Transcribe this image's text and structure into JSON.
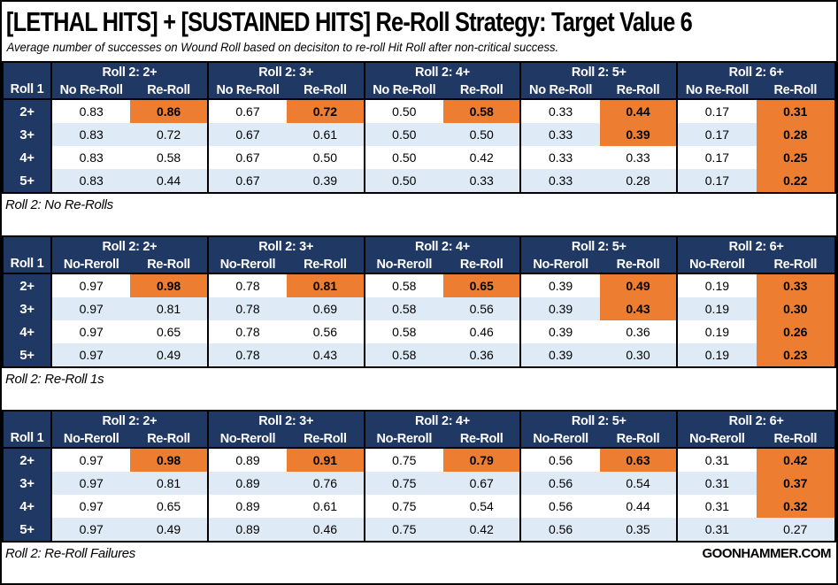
{
  "title": "[LETHAL HITS] + [SUSTAINED HITS] Re-Roll Strategy: Target Value 6",
  "subtitle": "Average number of successes on Wound Roll based on decisiton to re-roll Hit Roll after non-critical success.",
  "brand": "GOONHAMMER.COM",
  "colors": {
    "navy": "#1F3864",
    "orange": "#ED7D31",
    "band": "#DEEBF7",
    "border": "#000000"
  },
  "chart_data": [
    {
      "type": "table",
      "caption": "Roll 2: No Re-Rolls",
      "corner_label": "Roll 1",
      "groups": [
        "Roll 2: 2+",
        "Roll 2: 3+",
        "Roll 2: 4+",
        "Roll 2: 5+",
        "Roll 2: 6+"
      ],
      "subheaders": [
        "No Re-Roll",
        "Re-Roll"
      ],
      "rows": [
        {
          "label": "2+",
          "values": [
            "0.83",
            "0.86",
            "0.67",
            "0.72",
            "0.50",
            "0.58",
            "0.33",
            "0.44",
            "0.17",
            "0.31"
          ],
          "highlight": [
            1,
            3,
            5,
            7,
            9
          ]
        },
        {
          "label": "3+",
          "values": [
            "0.83",
            "0.72",
            "0.67",
            "0.61",
            "0.50",
            "0.50",
            "0.33",
            "0.39",
            "0.17",
            "0.28"
          ],
          "highlight": [
            7,
            9
          ]
        },
        {
          "label": "4+",
          "values": [
            "0.83",
            "0.58",
            "0.67",
            "0.50",
            "0.50",
            "0.42",
            "0.33",
            "0.33",
            "0.17",
            "0.25"
          ],
          "highlight": [
            9
          ]
        },
        {
          "label": "5+",
          "values": [
            "0.83",
            "0.44",
            "0.67",
            "0.39",
            "0.50",
            "0.33",
            "0.33",
            "0.28",
            "0.17",
            "0.22"
          ],
          "highlight": [
            9
          ]
        }
      ]
    },
    {
      "type": "table",
      "caption": "Roll 2: Re-Roll 1s",
      "corner_label": "Roll 1",
      "groups": [
        "Roll 2: 2+",
        "Roll 2: 3+",
        "Roll 2: 4+",
        "Roll 2: 5+",
        "Roll 2: 6+"
      ],
      "subheaders": [
        "No-Reroll",
        "Re-Roll"
      ],
      "rows": [
        {
          "label": "2+",
          "values": [
            "0.97",
            "0.98",
            "0.78",
            "0.81",
            "0.58",
            "0.65",
            "0.39",
            "0.49",
            "0.19",
            "0.33"
          ],
          "highlight": [
            1,
            3,
            5,
            7,
            9
          ]
        },
        {
          "label": "3+",
          "values": [
            "0.97",
            "0.81",
            "0.78",
            "0.69",
            "0.58",
            "0.56",
            "0.39",
            "0.43",
            "0.19",
            "0.30"
          ],
          "highlight": [
            7,
            9
          ]
        },
        {
          "label": "4+",
          "values": [
            "0.97",
            "0.65",
            "0.78",
            "0.56",
            "0.58",
            "0.46",
            "0.39",
            "0.36",
            "0.19",
            "0.26"
          ],
          "highlight": [
            9
          ]
        },
        {
          "label": "5+",
          "values": [
            "0.97",
            "0.49",
            "0.78",
            "0.43",
            "0.58",
            "0.36",
            "0.39",
            "0.30",
            "0.19",
            "0.23"
          ],
          "highlight": [
            9
          ]
        }
      ]
    },
    {
      "type": "table",
      "caption": "Roll 2: Re-Roll Failures",
      "corner_label": "Roll 1",
      "groups": [
        "Roll 2: 2+",
        "Roll 2: 3+",
        "Roll 2: 4+",
        "Roll 2: 5+",
        "Roll 2: 6+"
      ],
      "subheaders": [
        "No-Reroll",
        "Re-Roll"
      ],
      "rows": [
        {
          "label": "2+",
          "values": [
            "0.97",
            "0.98",
            "0.89",
            "0.91",
            "0.75",
            "0.79",
            "0.56",
            "0.63",
            "0.31",
            "0.42"
          ],
          "highlight": [
            1,
            3,
            5,
            7,
            9
          ]
        },
        {
          "label": "3+",
          "values": [
            "0.97",
            "0.81",
            "0.89",
            "0.76",
            "0.75",
            "0.67",
            "0.56",
            "0.54",
            "0.31",
            "0.37"
          ],
          "highlight": [
            9
          ]
        },
        {
          "label": "4+",
          "values": [
            "0.97",
            "0.65",
            "0.89",
            "0.61",
            "0.75",
            "0.54",
            "0.56",
            "0.44",
            "0.31",
            "0.32"
          ],
          "highlight": [
            9
          ]
        },
        {
          "label": "5+",
          "values": [
            "0.97",
            "0.49",
            "0.89",
            "0.46",
            "0.75",
            "0.42",
            "0.56",
            "0.35",
            "0.31",
            "0.27"
          ],
          "highlight": []
        }
      ]
    }
  ]
}
